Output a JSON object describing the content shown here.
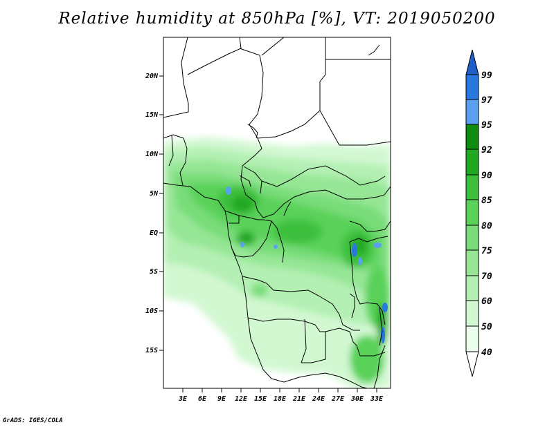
{
  "title": "Relative humidity at 850hPa [%], VT: 2019050200",
  "credit": "GrADS: IGES/COLA",
  "map": {
    "lat_labels": [
      "20N",
      "15N",
      "10N",
      "5N",
      "EQ",
      "5S",
      "10S",
      "15S"
    ],
    "lon_labels": [
      "3E",
      "6E",
      "9E",
      "12E",
      "15E",
      "18E",
      "21E",
      "24E",
      "27E",
      "30E",
      "33E"
    ]
  },
  "colorbar": {
    "levels": [
      "99",
      "97",
      "95",
      "92",
      "90",
      "85",
      "80",
      "75",
      "70",
      "60",
      "50",
      "40"
    ],
    "colors": [
      "#1e5fc8",
      "#2878e0",
      "#5aa0f0",
      "#0e8c0e",
      "#20a820",
      "#3cc03c",
      "#5ad25a",
      "#78dc78",
      "#96e696",
      "#b4f0b4",
      "#d2f8d2",
      "#ebfdeb"
    ],
    "top_arrow_color": "#1e5fc8",
    "bottom_arrow_color": "#ffffff"
  }
}
